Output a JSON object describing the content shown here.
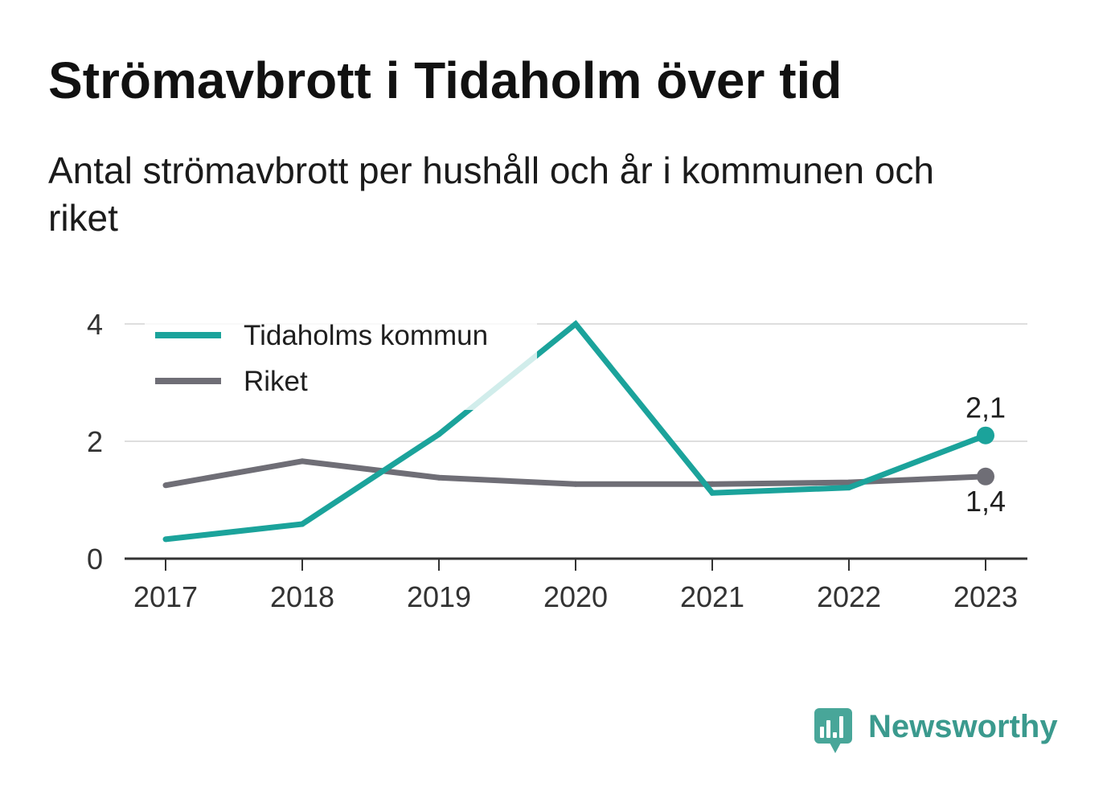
{
  "chart_data": {
    "type": "line",
    "title": "Strömavbrott i Tidaholm över tid",
    "subtitle": "Antal strömavbrott per hushåll och år i kommunen och riket",
    "x": [
      "2017",
      "2018",
      "2019",
      "2020",
      "2021",
      "2022",
      "2023"
    ],
    "y_ticks": [
      0,
      2,
      4
    ],
    "ylim": [
      0,
      4
    ],
    "grid": true,
    "legend_position": "top-left",
    "series": [
      {
        "name": "Tidaholms kommun",
        "color": "#1ba39b",
        "values": [
          0.33,
          0.59,
          2.12,
          4.0,
          1.12,
          1.21,
          2.1
        ],
        "end_label": "2,1"
      },
      {
        "name": "Riket",
        "color": "#6f6e76",
        "values": [
          1.25,
          1.66,
          1.38,
          1.27,
          1.27,
          1.3,
          1.4
        ],
        "end_label": "1,4"
      }
    ]
  },
  "brand": {
    "name": "Newsworthy",
    "icon": "newsworthy-logo-icon",
    "color": "#3b9a8e"
  }
}
